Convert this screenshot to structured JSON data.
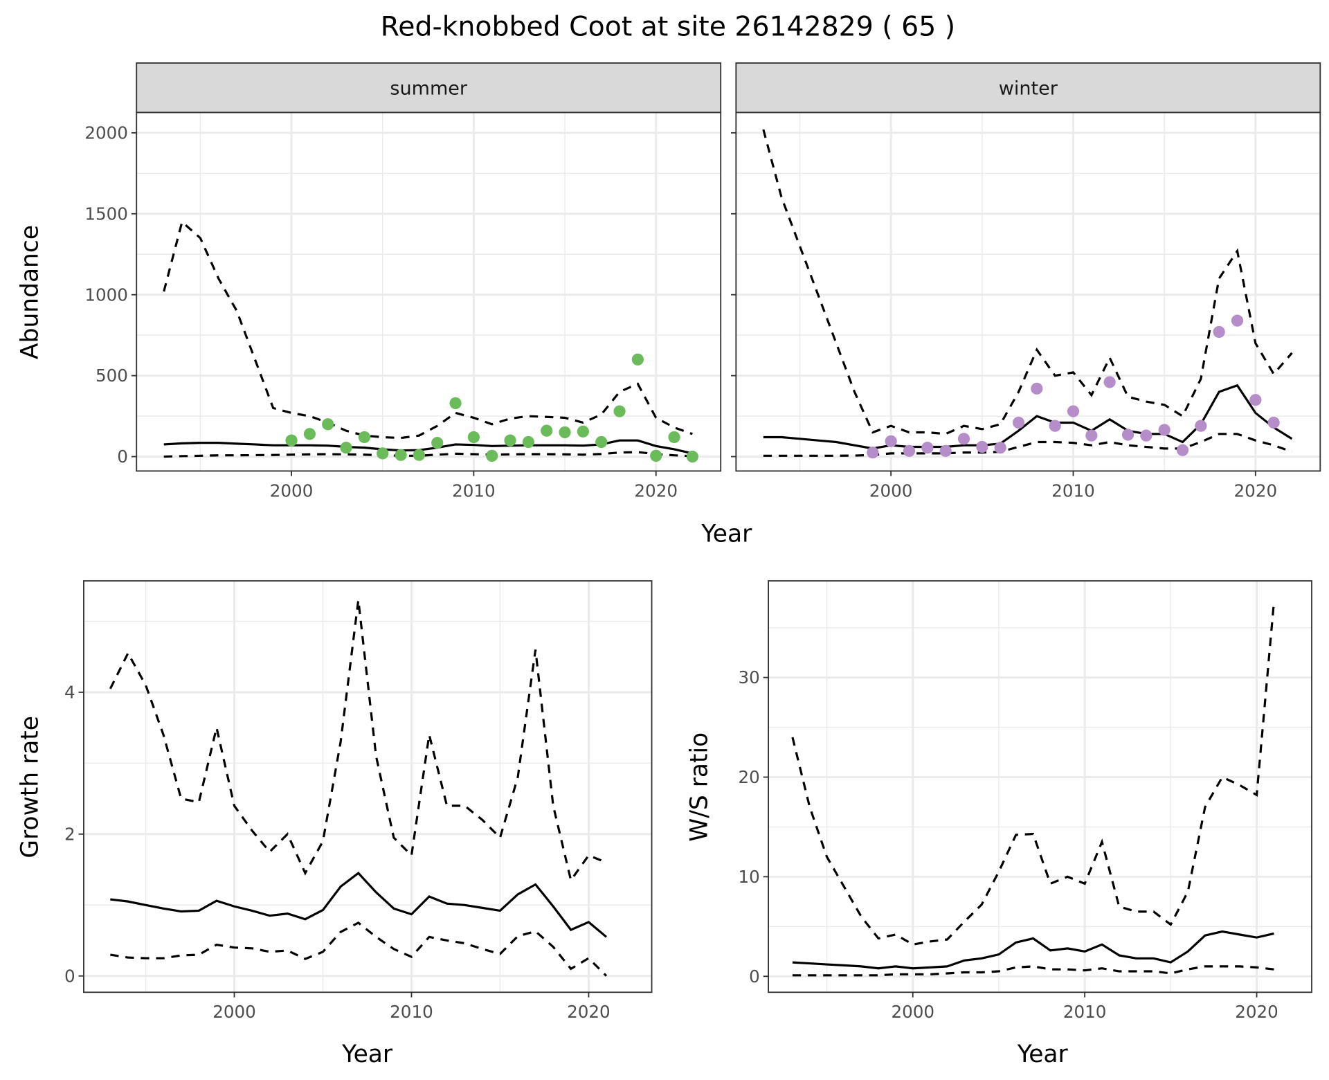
{
  "title": "Red-knobbed Coot at site 26142829 ( 65 )",
  "colors": {
    "summer_points": "#6BBB5B",
    "winter_points": "#B58DC8",
    "line": "#000000",
    "grid": "#EBEBEB"
  },
  "chart_data": [
    {
      "id": "summer",
      "type": "line+scatter",
      "facet": "summer",
      "xlabel": "Year",
      "ylabel": "Abundance",
      "xlim": [
        1991.5,
        2023.55
      ],
      "ylim": [
        -89,
        2126
      ],
      "xticks": [
        2000,
        2010,
        2020
      ],
      "yticks": [
        0,
        500,
        1000,
        1500,
        2000
      ],
      "line_years_start": 1993,
      "upper": [
        1020,
        1450,
        1350,
        1100,
        900,
        600,
        300,
        270,
        250,
        210,
        160,
        130,
        120,
        115,
        130,
        190,
        270,
        240,
        200,
        235,
        250,
        245,
        240,
        210,
        260,
        400,
        450,
        240,
        180,
        140
      ],
      "mid": [
        75,
        82,
        85,
        85,
        80,
        75,
        70,
        70,
        70,
        68,
        60,
        55,
        45,
        38,
        40,
        55,
        75,
        72,
        65,
        68,
        70,
        70,
        70,
        68,
        75,
        100,
        100,
        65,
        45,
        20
      ],
      "lower": [
        0,
        3,
        5,
        8,
        8,
        9,
        10,
        12,
        14,
        15,
        14,
        12,
        8,
        5,
        5,
        12,
        18,
        15,
        12,
        14,
        15,
        15,
        14,
        12,
        16,
        25,
        28,
        15,
        8,
        3
      ],
      "points_years_start": 2000,
      "points": [
        100,
        140,
        200,
        55,
        120,
        20,
        10,
        10,
        85,
        330,
        120,
        5,
        100,
        90,
        160,
        150,
        155,
        90,
        280,
        600,
        5,
        120,
        0
      ]
    },
    {
      "id": "winter",
      "type": "line+scatter",
      "facet": "winter",
      "xlabel": "Year",
      "ylabel": "Abundance",
      "xlim": [
        1991.5,
        2023.55
      ],
      "ylim": [
        -89,
        2126
      ],
      "xticks": [
        2000,
        2010,
        2020
      ],
      "yticks": [
        0,
        500,
        1000,
        1500,
        2000
      ],
      "line_years_start": 1993,
      "upper": [
        2020,
        1600,
        1300,
        1000,
        700,
        400,
        150,
        190,
        150,
        150,
        140,
        190,
        170,
        200,
        400,
        660,
        500,
        520,
        380,
        610,
        370,
        340,
        320,
        250,
        480,
        1100,
        1270,
        700,
        510,
        640
      ],
      "mid": [
        120,
        120,
        110,
        100,
        90,
        70,
        50,
        70,
        60,
        60,
        60,
        70,
        70,
        80,
        160,
        250,
        210,
        210,
        160,
        230,
        160,
        140,
        140,
        90,
        200,
        400,
        440,
        270,
        180,
        110
      ],
      "lower": [
        5,
        5,
        5,
        5,
        5,
        6,
        10,
        20,
        20,
        20,
        20,
        25,
        25,
        30,
        60,
        90,
        90,
        85,
        70,
        90,
        70,
        60,
        50,
        50,
        90,
        140,
        140,
        100,
        70,
        30
      ],
      "points_years_start": 1999,
      "points": [
        25,
        95,
        35,
        55,
        35,
        110,
        60,
        55,
        210,
        420,
        190,
        280,
        130,
        460,
        135,
        130,
        165,
        40,
        190,
        770,
        840,
        350,
        210
      ]
    },
    {
      "id": "growth",
      "type": "line",
      "xlabel": "Year",
      "ylabel": "Growth rate",
      "xlim": [
        1991.5,
        2023.56
      ],
      "ylim": [
        -0.23,
        5.57
      ],
      "xticks": [
        2000,
        2010,
        2020
      ],
      "yticks": [
        0,
        2,
        4
      ],
      "line_years_start": 1993,
      "upper": [
        4.05,
        4.55,
        4.1,
        3.4,
        2.5,
        2.45,
        3.5,
        2.4,
        2.05,
        1.75,
        2.0,
        1.45,
        1.9,
        3.3,
        5.3,
        3.1,
        1.95,
        1.7,
        3.4,
        2.4,
        2.4,
        2.2,
        1.95,
        2.8,
        4.6,
        2.4,
        1.35,
        1.7,
        1.6
      ],
      "mid": [
        1.08,
        1.05,
        1.0,
        0.95,
        0.91,
        0.92,
        1.06,
        0.98,
        0.92,
        0.85,
        0.88,
        0.8,
        0.93,
        1.26,
        1.45,
        1.18,
        0.95,
        0.87,
        1.12,
        1.02,
        1.0,
        0.96,
        0.92,
        1.15,
        1.29,
        0.98,
        0.65,
        0.76,
        0.55
      ],
      "lower": [
        0.3,
        0.26,
        0.25,
        0.25,
        0.29,
        0.3,
        0.44,
        0.4,
        0.39,
        0.34,
        0.36,
        0.24,
        0.34,
        0.62,
        0.75,
        0.55,
        0.38,
        0.27,
        0.55,
        0.5,
        0.46,
        0.38,
        0.31,
        0.56,
        0.63,
        0.41,
        0.1,
        0.25,
        0.0
      ]
    },
    {
      "id": "ratio",
      "type": "line",
      "xlabel": "Year",
      "ylabel": "W/S ratio",
      "xlim": [
        1991.6,
        2023.2
      ],
      "ylim": [
        -1.6,
        39.7
      ],
      "xticks": [
        2000,
        2010,
        2020
      ],
      "yticks": [
        0,
        10,
        20,
        30
      ],
      "line_years_start": 1993,
      "upper": [
        24,
        17,
        12,
        9,
        6,
        3.8,
        4.2,
        3.2,
        3.5,
        3.7,
        5.5,
        7.2,
        10.5,
        14.2,
        14.3,
        9.3,
        10,
        9.3,
        13.5,
        7,
        6.5,
        6.5,
        5.2,
        8.5,
        17,
        20,
        19.2,
        18.2,
        37.5
      ],
      "mid": [
        1.4,
        1.3,
        1.2,
        1.1,
        1.0,
        0.8,
        1.0,
        0.8,
        0.9,
        1.0,
        1.6,
        1.8,
        2.2,
        3.4,
        3.8,
        2.6,
        2.8,
        2.5,
        3.2,
        2.1,
        1.8,
        1.8,
        1.4,
        2.5,
        4.1,
        4.5,
        4.2,
        3.9,
        4.3
      ],
      "lower": [
        0.1,
        0.1,
        0.1,
        0.1,
        0.1,
        0.1,
        0.2,
        0.2,
        0.2,
        0.3,
        0.4,
        0.4,
        0.5,
        0.9,
        1.0,
        0.7,
        0.7,
        0.6,
        0.8,
        0.5,
        0.5,
        0.5,
        0.3,
        0.7,
        1.0,
        1.0,
        1.0,
        0.9,
        0.7
      ]
    }
  ]
}
